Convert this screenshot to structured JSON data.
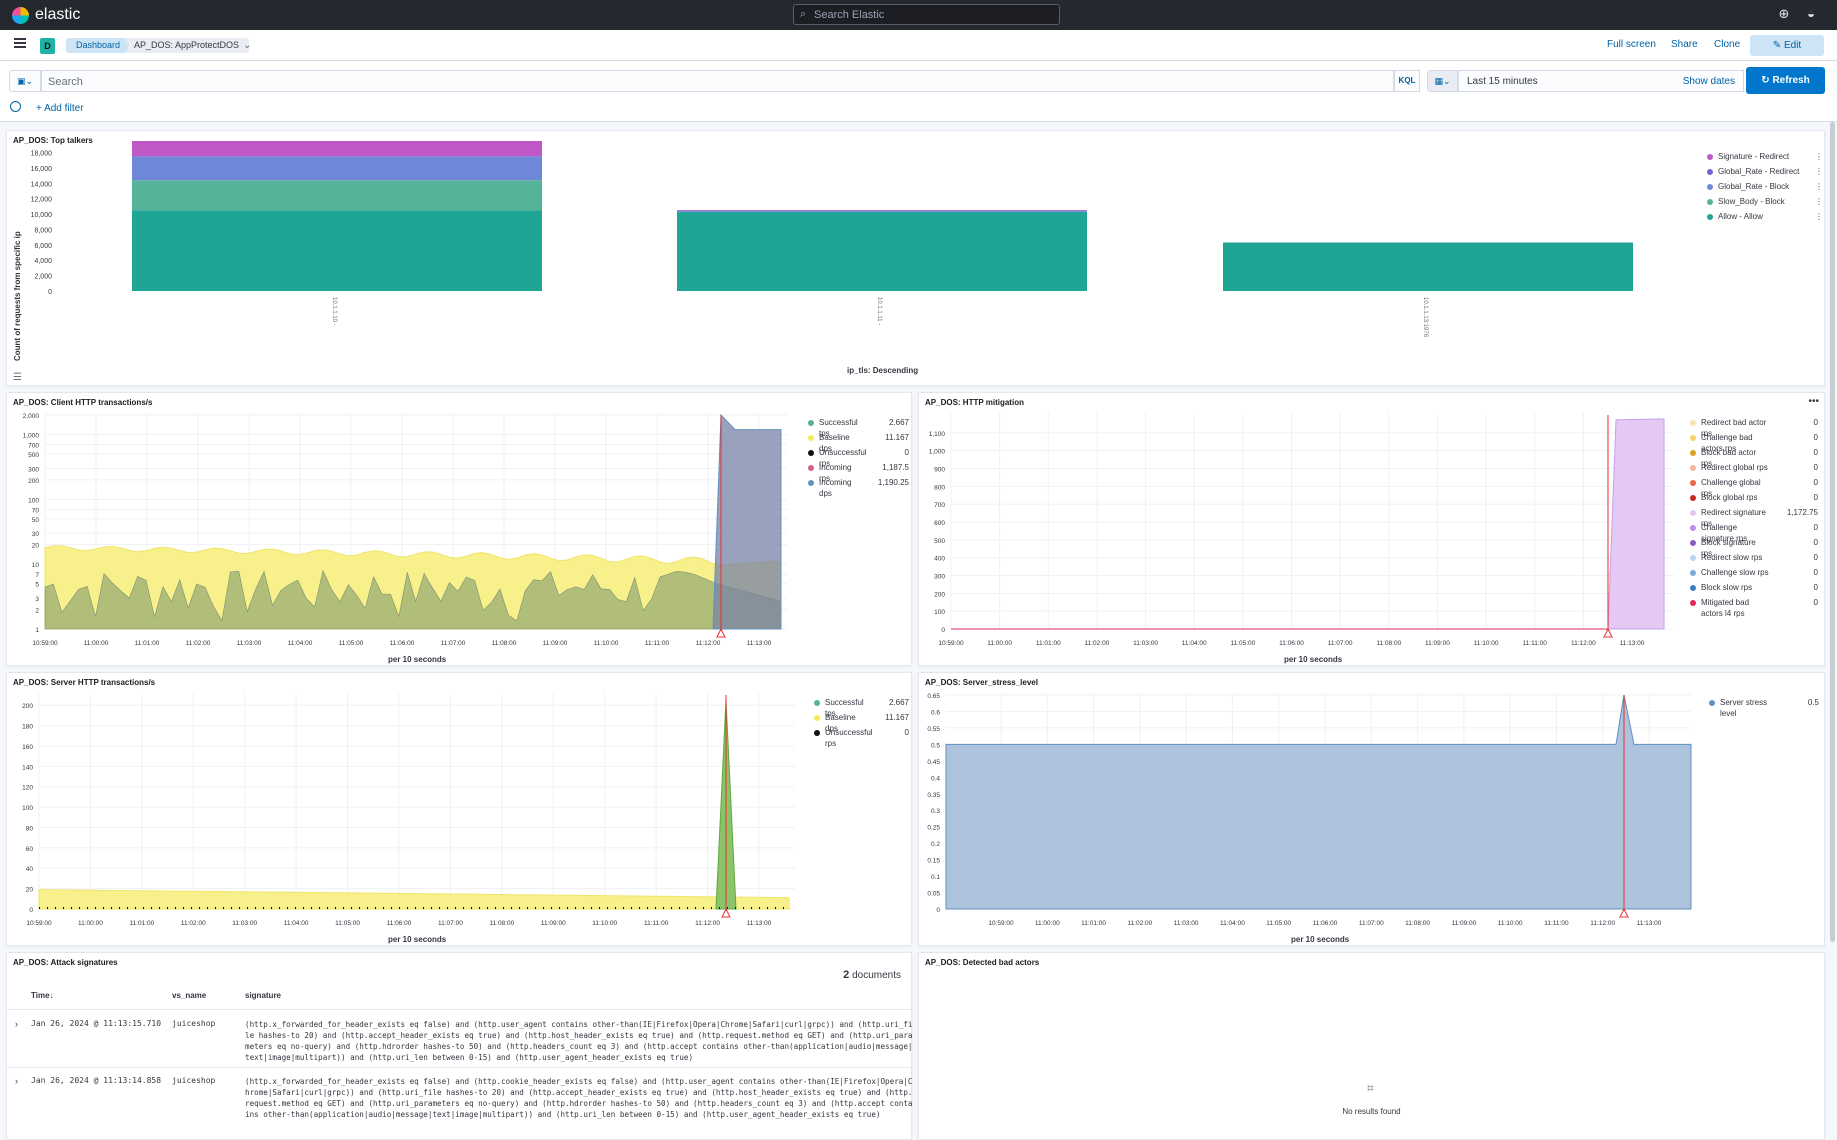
{
  "app": {
    "brand": "elastic",
    "search_placeholder": "Search Elastic",
    "space_initial": "D",
    "breadcrumbs": [
      "Dashboard",
      "AP_DOS: AppProtectDOS"
    ],
    "actions": {
      "full_screen": "Full screen",
      "share": "Share",
      "clone": "Clone",
      "edit": "Edit"
    }
  },
  "query": {
    "placeholder": "Search",
    "language": "KQL",
    "time_range": "Last 15 minutes",
    "show_dates": "Show dates",
    "refresh": "Refresh",
    "add_filter": "+ Add filter"
  },
  "panels": {
    "top_talkers": {
      "title": "AP_DOS: Top talkers",
      "legend": [
        {
          "name": "Signature - Redirect",
          "color": "#c057c6"
        },
        {
          "name": "Global_Rate - Redirect",
          "color": "#7b61d8"
        },
        {
          "name": "Global_Rate - Block",
          "color": "#6f87d8"
        },
        {
          "name": "Slow_Body - Block",
          "color": "#54b399"
        },
        {
          "name": "Allow - Allow",
          "color": "#1ea593"
        }
      ]
    },
    "client_http": {
      "title": "AP_DOS: Client HTTP transactions/s",
      "legend": [
        {
          "name": "Successful tps",
          "value": "2.667",
          "color": "#54b399"
        },
        {
          "name": "Baseline dps",
          "value": "11.167",
          "color": "#f4ea5c"
        },
        {
          "name": "Unsuccessful rps",
          "value": "0",
          "color": "#111111"
        },
        {
          "name": "Incoming rps",
          "value": "1,187.5",
          "color": "#d36086"
        },
        {
          "name": "Incoming dps",
          "value": "1,190.25",
          "color": "#6092c0"
        }
      ]
    },
    "http_mitigation": {
      "title": "AP_DOS: HTTP mitigation",
      "legend": [
        {
          "name": "Redirect bad actor rps",
          "value": "0",
          "color": "#f9e3b3"
        },
        {
          "name": "Challenge bad actors rps",
          "value": "0",
          "color": "#f6d46a"
        },
        {
          "name": "Block bad actor rps",
          "value": "0",
          "color": "#d6a321"
        },
        {
          "name": "Redirect global rps",
          "value": "0",
          "color": "#f3b49b"
        },
        {
          "name": "Challenge global rps",
          "value": "0",
          "color": "#e7664c"
        },
        {
          "name": "Block global rps",
          "value": "0",
          "color": "#c5281f"
        },
        {
          "name": "Redirect signature rps",
          "value": "1,172.75",
          "color": "#e0c6f2"
        },
        {
          "name": "Challenge signature rps",
          "value": "0",
          "color": "#b98de6"
        },
        {
          "name": "Block signature rps",
          "value": "0",
          "color": "#8a5ac2"
        },
        {
          "name": "Redirect slow rps",
          "value": "0",
          "color": "#b9d6ee"
        },
        {
          "name": "Challenge slow rps",
          "value": "0",
          "color": "#79aad9"
        },
        {
          "name": "Block slow rps",
          "value": "0",
          "color": "#3f7ac5"
        },
        {
          "name": "Mitigated bad actors l4 rps",
          "value": "0",
          "color": "#e0285a"
        }
      ]
    },
    "server_http": {
      "title": "AP_DOS: Server HTTP transactions/s",
      "legend": [
        {
          "name": "Successful tps",
          "value": "2.667",
          "color": "#54b399"
        },
        {
          "name": "Baseline dps",
          "value": "11.167",
          "color": "#f4ea5c"
        },
        {
          "name": "Unsuccessful rps",
          "value": "0",
          "color": "#111111"
        }
      ]
    },
    "server_stress": {
      "title": "AP_DOS: Server_stress_level",
      "legend": [
        {
          "name": "Server stress level",
          "value": "0.5",
          "color": "#6092c0"
        }
      ]
    },
    "attack_signatures": {
      "title": "AP_DOS: Attack signatures",
      "doc_count": "2",
      "doc_label": "documents",
      "columns": [
        "Time",
        "vs_name",
        "signature"
      ],
      "rows": [
        {
          "time": "Jan 26, 2024 @ 11:13:15.710",
          "vs_name": "juiceshop",
          "signature": "(http.x_forwarded_for_header_exists eq false) and (http.user_agent contains other-than(IE|Firefox|Opera|Chrome|Safari|curl|grpc)) and (http.uri_file hashes-to 20) and (http.accept_header_exists eq true) and (http.host_header_exists eq true) and (http.request.method eq GET) and (http.uri_parameters eq no-query) and (http.hdrorder hashes-to 50) and (http.headers_count eq 3) and (http.accept contains other-than(application|audio|message|text|image|multipart)) and (http.uri_len between 0-15) and (http.user_agent_header_exists eq true)"
        },
        {
          "time": "Jan 26, 2024 @ 11:13:14.858",
          "vs_name": "juiceshop",
          "signature": "(http.x_forwarded_for_header_exists eq false) and (http.cookie_header_exists eq false) and (http.user_agent contains other-than(IE|Firefox|Opera|Chrome|Safari|curl|grpc)) and (http.uri_file hashes-to 20) and (http.accept_header_exists eq true) and (http.host_header_exists eq true) and (http.request.method eq GET) and (http.uri_parameters eq no-query) and (http.hdrorder hashes-to 50) and (http.headers_count eq 3) and (http.accept contains other-than(application|audio|message|text|image|multipart)) and (http.uri_len between 0-15) and (http.user_agent_header_exists eq true)"
        }
      ]
    },
    "bad_actors": {
      "title": "AP_DOS: Detected bad actors",
      "empty_text": "No results found"
    }
  },
  "chart_data": [
    {
      "type": "bar",
      "title": "AP_DOS: Top talkers",
      "xlabel": "ip_tls: Descending",
      "ylabel": "Count of requests from specific ip",
      "categories": [
        "10.1.1.10 -",
        "10.1.1.11 -",
        "10.1.1.13:1976"
      ],
      "ylim": [
        0,
        19500
      ],
      "yticks": [
        0,
        2000,
        4000,
        6000,
        8000,
        10000,
        12000,
        14000,
        16000,
        18000
      ],
      "stacked": true,
      "series": [
        {
          "name": "Allow - Allow",
          "values": [
            10500,
            10300,
            6300
          ]
        },
        {
          "name": "Slow_Body - Block",
          "values": [
            3900,
            0,
            0
          ]
        },
        {
          "name": "Global_Rate - Block",
          "values": [
            3100,
            150,
            0
          ]
        },
        {
          "name": "Global_Rate - Redirect",
          "values": [
            0,
            0,
            0
          ]
        },
        {
          "name": "Signature - Redirect",
          "values": [
            2000,
            80,
            0
          ]
        }
      ],
      "legend": "right"
    },
    {
      "type": "area",
      "title": "AP_DOS: Client HTTP transactions/s",
      "xlabel": "per 10 seconds",
      "yscale": "log",
      "ylim": [
        1,
        2000
      ],
      "yticks": [
        1,
        2,
        3,
        5,
        7,
        10,
        20,
        30,
        50,
        70,
        100,
        200,
        300,
        500,
        700,
        1000,
        2000
      ],
      "xticks": [
        "10:59:00",
        "11:00:00",
        "11:01:00",
        "11:02:00",
        "11:03:00",
        "11:04:00",
        "11:05:00",
        "11:06:00",
        "11:07:00",
        "11:08:00",
        "11:09:00",
        "11:10:00",
        "11:11:00",
        "11:12:00",
        "11:13:00"
      ],
      "series": [
        {
          "name": "Baseline dps",
          "start": 18,
          "end": 11.167
        },
        {
          "name": "Successful tps",
          "range": [
            1,
            8
          ],
          "final": 2.667
        },
        {
          "name": "Incoming dps",
          "spike": 2000,
          "final": 1190.25
        },
        {
          "name": "Incoming rps",
          "final": 1187.5
        }
      ],
      "annotation": "11:12:40",
      "legend": "right"
    },
    {
      "type": "area",
      "title": "AP_DOS: HTTP mitigation",
      "xlabel": "per 10 seconds",
      "ylim": [
        0,
        1200
      ],
      "yticks": [
        0,
        100,
        200,
        300,
        400,
        500,
        600,
        700,
        800,
        900,
        1000,
        1100
      ],
      "xticks": [
        "10:59:00",
        "11:00:00",
        "11:01:00",
        "11:02:00",
        "11:03:00",
        "11:04:00",
        "11:05:00",
        "11:06:00",
        "11:07:00",
        "11:08:00",
        "11:09:00",
        "11:10:00",
        "11:11:00",
        "11:12:00",
        "11:13:00"
      ],
      "series": [
        {
          "name": "Redirect signature rps",
          "before": 0,
          "after": 1172.75
        }
      ],
      "annotation": "11:12:40",
      "legend": "right"
    },
    {
      "type": "area",
      "title": "AP_DOS: Server HTTP transactions/s",
      "xlabel": "per 10 seconds",
      "ylim": [
        0,
        210
      ],
      "yticks": [
        0,
        20,
        40,
        60,
        80,
        100,
        120,
        140,
        160,
        180,
        200
      ],
      "xticks": [
        "10:59:00",
        "11:00:00",
        "11:01:00",
        "11:02:00",
        "11:03:00",
        "11:04:00",
        "11:05:00",
        "11:06:00",
        "11:07:00",
        "11:08:00",
        "11:09:00",
        "11:10:00",
        "11:11:00",
        "11:12:00",
        "11:13:00"
      ],
      "series": [
        {
          "name": "Baseline dps",
          "start": 19,
          "end": 11.167
        },
        {
          "name": "Successful tps",
          "baseline": 2.667,
          "spike": 205
        },
        {
          "name": "Unsuccessful rps",
          "values": 0
        }
      ],
      "annotation": "11:12:40",
      "legend": "right"
    },
    {
      "type": "area",
      "title": "AP_DOS: Server_stress_level",
      "xlabel": "per 10 seconds",
      "ylim": [
        0,
        0.65
      ],
      "yticks": [
        0,
        0.05,
        0.1,
        0.15,
        0.2,
        0.25,
        0.3,
        0.35,
        0.4,
        0.45,
        0.5,
        0.55,
        0.6,
        0.65
      ],
      "xticks": [
        "10:59:00",
        "11:00:00",
        "11:01:00",
        "11:02:00",
        "11:03:00",
        "11:04:00",
        "11:05:00",
        "11:06:00",
        "11:07:00",
        "11:08:00",
        "11:09:00",
        "11:10:00",
        "11:11:00",
        "11:12:00",
        "11:13:00"
      ],
      "series": [
        {
          "name": "Server stress level",
          "baseline": 0.5,
          "spike": 0.65
        }
      ],
      "annotation": "11:12:40",
      "legend": "right"
    }
  ]
}
